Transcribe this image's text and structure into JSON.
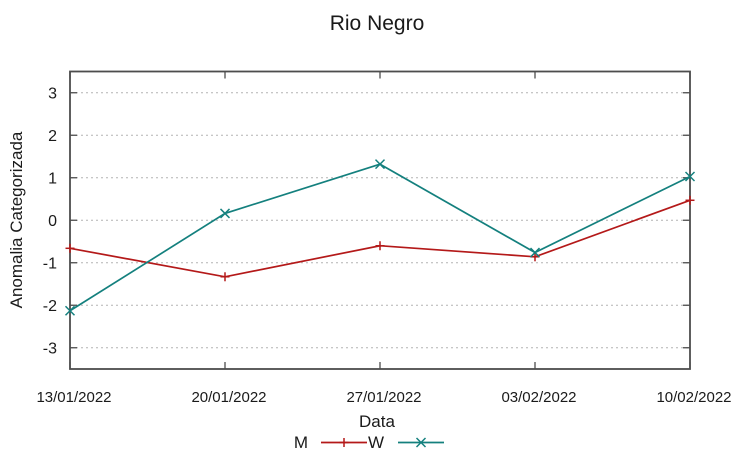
{
  "chart_data": {
    "type": "line",
    "title": "Rio Negro",
    "xlabel": "Data",
    "ylabel": "Anomalia Categorizada",
    "categories": [
      "13/01/2022",
      "20/01/2022",
      "27/01/2022",
      "03/02/2022",
      "10/02/2022"
    ],
    "series": [
      {
        "name": "M",
        "color": "#b41919",
        "marker": "plus",
        "values": [
          -0.66,
          -1.33,
          -0.6,
          -0.86,
          0.47
        ]
      },
      {
        "name": "W",
        "color": "#14807e",
        "marker": "x",
        "values": [
          -2.13,
          0.16,
          1.32,
          -0.76,
          1.03
        ]
      }
    ],
    "ylim": [
      -3.5,
      3.5
    ],
    "yticks": [
      -3,
      -2,
      -1,
      0,
      1,
      2,
      3
    ],
    "grid": "horizontal-dashed",
    "legend_position": "bottom-center"
  },
  "colors": {
    "background": "#ffffff",
    "grid": "#b3b3b3",
    "border": "#4d4d4d",
    "text": "#1a1a1a"
  }
}
